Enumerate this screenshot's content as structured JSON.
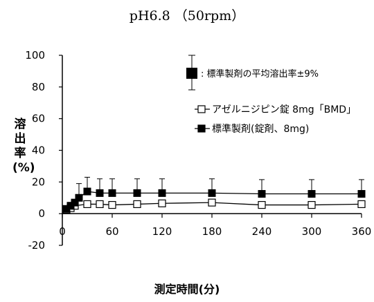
{
  "chart_data": {
    "type": "line",
    "title": "pH6.8 （50rpm）",
    "xlabel": "測定時間(分)",
    "ylabel": "溶出率(%)",
    "xlim": [
      0,
      360
    ],
    "ylim": [
      -20,
      100
    ],
    "xticks": [
      "0",
      "60",
      "120",
      "180",
      "240",
      "300",
      "360"
    ],
    "yticks": [
      "-20",
      "0",
      "20",
      "40",
      "60",
      "80",
      "100"
    ],
    "grid": false,
    "legend_position": "top-right",
    "errorbar_legend": ": 標準製剤の平均溶出率±9%",
    "series": [
      {
        "name": "アゼルニジピン錠 8mg「BMD」",
        "marker": "open-square",
        "color": "#000000",
        "x": [
          5,
          10,
          15,
          30,
          45,
          60,
          90,
          120,
          180,
          240,
          300,
          360
        ],
        "y": [
          2.5,
          3.5,
          5,
          6,
          6,
          5.5,
          6,
          6.5,
          7,
          5.5,
          5.5,
          6
        ]
      },
      {
        "name": "標準製剤(錠剤、8mg)",
        "marker": "filled-square",
        "color": "#000000",
        "x": [
          5,
          10,
          15,
          20,
          30,
          45,
          60,
          90,
          120,
          180,
          240,
          300,
          360
        ],
        "y": [
          3,
          5,
          7,
          10,
          14,
          13,
          13,
          13,
          13,
          13,
          12.5,
          12.5,
          12.5
        ],
        "error": 9
      }
    ]
  }
}
